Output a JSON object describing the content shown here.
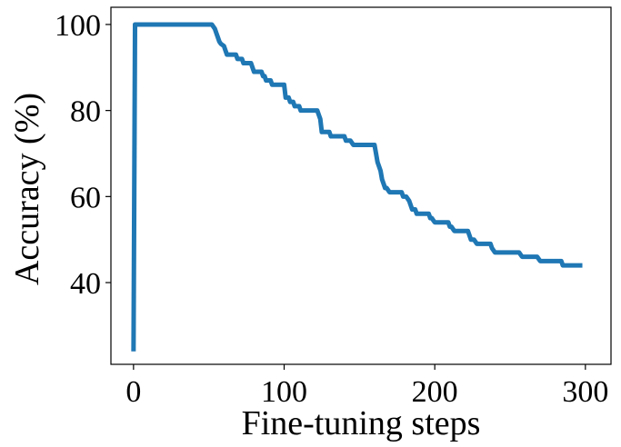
{
  "chart_data": {
    "type": "line",
    "title": "",
    "xlabel": "Fine-tuning steps",
    "ylabel": "Accuracy (%)",
    "xlim": [
      -15,
      317
    ],
    "ylim": [
      21,
      104
    ],
    "xticks": [
      0,
      100,
      200,
      300
    ],
    "yticks": [
      40,
      60,
      80,
      100
    ],
    "xtick_labels": [
      "0",
      "100",
      "200",
      "300"
    ],
    "ytick_labels": [
      "40",
      "60",
      "80",
      "100"
    ],
    "grid": false,
    "legend": "none",
    "series": [
      {
        "color": "#1f77b4",
        "x": [
          0,
          1,
          2,
          5,
          10,
          20,
          30,
          40,
          50,
          52,
          53,
          54,
          55,
          56,
          57,
          58,
          60,
          61,
          62,
          63,
          65,
          66,
          67,
          68,
          69,
          70,
          72,
          73,
          75,
          76,
          78,
          79,
          80,
          82,
          83,
          85,
          86,
          87,
          88,
          90,
          91,
          92,
          94,
          95,
          97,
          98,
          100,
          101,
          103,
          104,
          106,
          107,
          110,
          111,
          113,
          114,
          115,
          117,
          118,
          120,
          122,
          124,
          125,
          126,
          128,
          130,
          131,
          132,
          134,
          135,
          136,
          138,
          140,
          141,
          143,
          144,
          146,
          147,
          150,
          151,
          153,
          154,
          156,
          157,
          160,
          161,
          162,
          163,
          164,
          165,
          166,
          167,
          168,
          170,
          171,
          172,
          173,
          175,
          176,
          178,
          179,
          180,
          181,
          183,
          184,
          185,
          186,
          187,
          188,
          190,
          192,
          194,
          196,
          197,
          198,
          200,
          201,
          203,
          204,
          206,
          207,
          209,
          210,
          211,
          213,
          214,
          216,
          217,
          219,
          220,
          222,
          224,
          226,
          228,
          230,
          232,
          234,
          236,
          237,
          238,
          240,
          242,
          244,
          246,
          248,
          250,
          252,
          254,
          256,
          258,
          260,
          262,
          264,
          266,
          268,
          270,
          272,
          274,
          276,
          278,
          280,
          282,
          284,
          285,
          286,
          288,
          290,
          292,
          294,
          296,
          298
        ],
        "values": [
          24,
          100,
          100,
          100,
          100,
          100,
          100,
          100,
          100,
          100,
          99.5,
          99,
          98,
          97,
          96,
          95.5,
          95,
          94,
          93,
          93,
          93,
          93,
          93,
          93,
          92,
          92,
          92,
          91,
          91,
          91,
          91,
          90,
          89,
          89,
          89,
          89,
          88,
          88,
          87,
          87,
          87,
          86,
          86,
          86,
          86,
          86,
          86,
          83,
          83,
          82,
          82,
          81,
          81,
          80,
          80,
          80,
          80,
          80,
          80,
          80,
          80,
          78,
          75,
          75,
          75,
          75,
          74,
          74,
          74,
          74,
          74,
          74,
          74,
          73,
          73,
          73,
          72,
          72,
          72,
          72,
          72,
          72,
          72,
          72,
          72,
          70,
          68,
          67,
          66,
          64,
          63,
          62,
          62,
          61,
          61,
          61,
          61,
          61,
          61,
          61,
          60,
          60,
          60,
          59,
          58,
          57,
          57,
          57,
          56,
          56,
          56,
          56,
          56,
          55,
          55,
          54,
          54,
          54,
          54,
          54,
          54,
          54,
          53,
          53,
          52,
          52,
          52,
          52,
          52,
          52,
          52,
          50,
          50,
          49,
          49,
          49,
          49,
          49,
          49,
          48,
          47,
          47,
          47,
          47,
          47,
          47,
          47,
          47,
          47,
          46,
          46,
          46,
          46,
          46,
          46,
          45,
          45,
          45,
          45,
          45,
          45,
          45,
          45,
          44,
          44,
          44,
          44,
          44,
          44,
          44,
          44
        ]
      }
    ]
  }
}
